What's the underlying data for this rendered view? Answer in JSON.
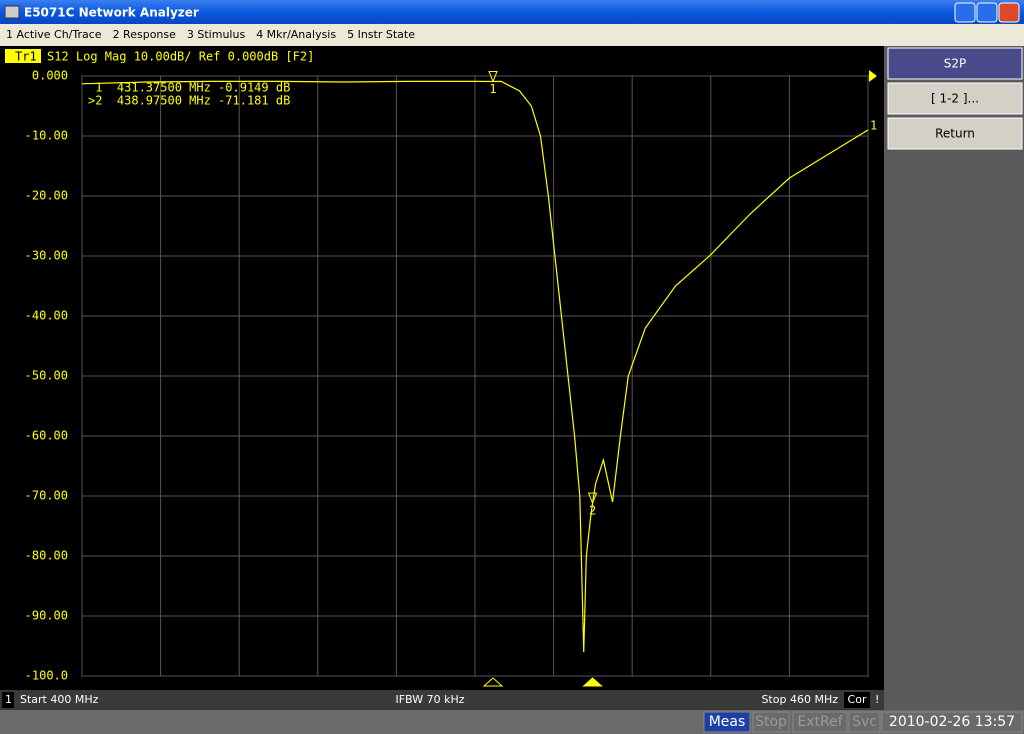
{
  "window": {
    "title": "E5071C Network Analyzer"
  },
  "menu": [
    "1 Active Ch/Trace",
    "2 Response",
    "3 Stimulus",
    "4 Mkr/Analysis",
    "5 Instr State"
  ],
  "chart_data": {
    "type": "line",
    "trace_label": "Tr1",
    "title": "S12 Log Mag 10.00dB/ Ref 0.000dB [F2]",
    "series": [
      {
        "name": "1",
        "color": "#ffff00",
        "x": [
          400,
          405,
          410,
          415,
          420,
          425,
          430,
          431.375,
          432,
          433.4,
          434.3,
          435.0,
          435.6,
          436.1,
          436.6,
          437.1,
          437.6,
          438.0,
          438.3,
          438.5,
          438.8,
          438.975,
          439.2,
          439.8,
          440.2,
          440.5,
          441.1,
          441.7,
          443.0,
          445.3,
          447.9,
          451,
          454,
          457,
          460
        ],
        "values": [
          -1.3,
          -1.0,
          -0.9,
          -0.9,
          -1.0,
          -0.9,
          -0.9,
          -0.9149,
          -0.9,
          -2.5,
          -5,
          -10,
          -20,
          -30,
          -40,
          -50,
          -60,
          -70,
          -96,
          -80,
          -74,
          -71.181,
          -68,
          -64,
          -68,
          -71,
          -60,
          -50,
          -42,
          -35,
          -30,
          -23,
          -17,
          -13,
          -9
        ]
      }
    ],
    "markers": [
      {
        "label": "1",
        "x": 431.375,
        "value": -0.9149,
        "readout": " 1  431.37500 MHz -0.9149 dB"
      },
      {
        "label": "2",
        "x": 438.975,
        "value": -71.181,
        "readout": ">2  438.97500 MHz -71.181 dB"
      }
    ],
    "xlim": [
      400,
      460
    ],
    "xticks": [
      400,
      406,
      412,
      418,
      424,
      430,
      436,
      442,
      448,
      454,
      460
    ],
    "ylim": [
      -100,
      0
    ],
    "yticks": [
      {
        "value": 0,
        "label": "0.000"
      },
      {
        "value": -10,
        "label": "-10.00"
      },
      {
        "value": -20,
        "label": "-20.00"
      },
      {
        "value": -30,
        "label": "-30.00"
      },
      {
        "value": -40,
        "label": "-40.00"
      },
      {
        "value": -50,
        "label": "-50.00"
      },
      {
        "value": -60,
        "label": "-60.00"
      },
      {
        "value": -70,
        "label": "-70.00"
      },
      {
        "value": -80,
        "label": "-80.00"
      },
      {
        "value": -90,
        "label": "-90.00"
      },
      {
        "value": -100,
        "label": "-100.0"
      }
    ],
    "grid": true
  },
  "channel_status": {
    "channel": "1",
    "start": "Start 400 MHz",
    "ifbw": "IFBW 70 kHz",
    "stop": "Stop 460 MHz",
    "cor": "Cor",
    "flag": "!"
  },
  "softkeys": [
    "S2P",
    "[ 1-2 ]...",
    "Return"
  ],
  "status_bar": {
    "meas": "Meas",
    "stop": "Stop",
    "extref": "ExtRef",
    "svc": "Svc",
    "datetime": "2010-02-26 13:57"
  }
}
